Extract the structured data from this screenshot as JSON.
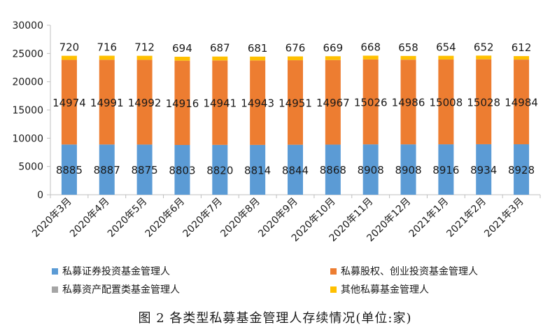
{
  "chart_data": {
    "type": "bar",
    "stacked": true,
    "categories": [
      "2020年3月",
      "2020年4月",
      "2020年5月",
      "2020年6月",
      "2020年7月",
      "2020年8月",
      "2020年9月",
      "2020年10月",
      "2020年11月",
      "2020年12月",
      "2021年1月",
      "2021年2月",
      "2021年3月"
    ],
    "series": [
      {
        "name": "私募证券投资基金管理人",
        "color": "#5B9BD5",
        "values": [
          8885,
          8887,
          8875,
          8803,
          8820,
          8814,
          8844,
          8868,
          8908,
          8908,
          8916,
          8934,
          8928
        ]
      },
      {
        "name": "私募股权、创业投资基金管理人",
        "color": "#ED7D31",
        "values": [
          14974,
          14991,
          14992,
          14916,
          14941,
          14943,
          14951,
          14967,
          15026,
          14986,
          15008,
          15028,
          14984
        ]
      },
      {
        "name": "私募资产配置类基金管理人",
        "color": "#A5A5A5",
        "values": [
          9,
          9,
          9,
          9,
          9,
          9,
          9,
          9,
          9,
          9,
          9,
          9,
          9
        ]
      },
      {
        "name": "其他私募基金管理人",
        "color": "#FFC000",
        "values": [
          720,
          716,
          712,
          694,
          687,
          681,
          676,
          669,
          668,
          658,
          654,
          652,
          612
        ]
      }
    ],
    "label_series": [
      0,
      1,
      3
    ],
    "ylim": [
      0,
      30000
    ],
    "yticks": [
      0,
      5000,
      10000,
      15000,
      20000,
      25000,
      30000
    ],
    "grid": false,
    "legend_position": "bottom",
    "title": "图 2 各类型私募基金管理人存续情况(单位:家)"
  }
}
